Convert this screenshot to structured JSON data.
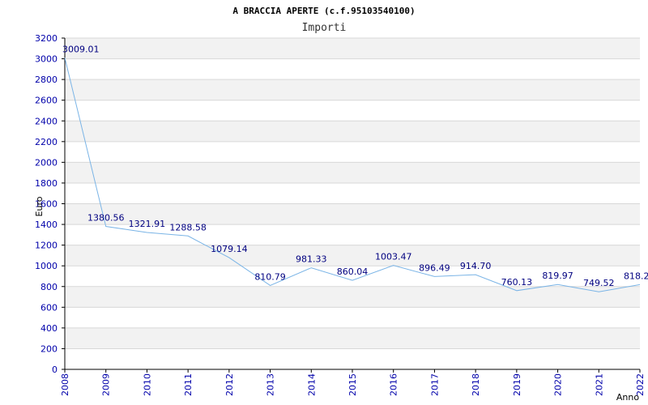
{
  "chart_data": {
    "type": "line",
    "title": "A BRACCIA APERTE (c.f.95103540100)",
    "subtitle": "Importi",
    "xlabel": "Anno",
    "ylabel": "Euro",
    "x": [
      "2008",
      "2009",
      "2010",
      "2011",
      "2012",
      "2013",
      "2014",
      "2015",
      "2016",
      "2017",
      "2018",
      "2019",
      "2020",
      "2021",
      "2022"
    ],
    "series": [
      {
        "values": [
          3009.01,
          1380.56,
          1321.91,
          1288.58,
          1079.14,
          810.79,
          981.33,
          860.04,
          1003.47,
          896.49,
          914.7,
          760.13,
          819.97,
          749.52,
          818.2
        ],
        "labels": [
          "3009.01",
          "1380.56",
          "1321.91",
          "1288.58",
          "1079.14",
          "810.79",
          "981.33",
          "860.04",
          "1003.47",
          "896.49",
          "914.70",
          "760.13",
          "819.97",
          "749.52",
          "818.2"
        ]
      }
    ],
    "ylim": [
      0,
      3200
    ],
    "yticks": [
      "0",
      "200",
      "400",
      "600",
      "800",
      "1000",
      "1200",
      "1400",
      "1600",
      "1800",
      "2000",
      "2200",
      "2400",
      "2600",
      "2800",
      "3000",
      "3200"
    ],
    "grid": true,
    "colors": {
      "line": "#7ab4e6",
      "band": "#f2f2f2",
      "grid": "#d8d8d8",
      "axis": "#000000",
      "tick_text": "#0000aa"
    }
  }
}
